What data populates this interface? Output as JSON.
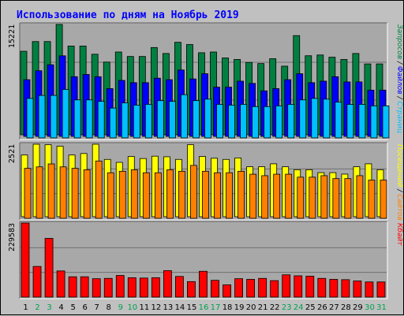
{
  "chart_data": {
    "type": "bar",
    "title": "Использование по дням на Ноябрь 2019",
    "colors": {
      "background": "#c0c0c0",
      "panel": "#a8a8a8",
      "title": "#0000ff",
      "requests": "#008040",
      "files": "#0000ff",
      "pages": "#00c0ff",
      "visits": "#ffff00",
      "sites": "#ff8000",
      "kbytes": "#ff0000",
      "weekend_day": "#00a050",
      "weekday": "#000000"
    },
    "days": [
      "1",
      "2",
      "3",
      "4",
      "5",
      "6",
      "7",
      "8",
      "9",
      "10",
      "11",
      "12",
      "13",
      "14",
      "15",
      "16",
      "17",
      "18",
      "19",
      "20",
      "21",
      "22",
      "23",
      "24",
      "25",
      "26",
      "27",
      "28",
      "29",
      "30",
      "31"
    ],
    "weekend_days": [
      "2",
      "3",
      "9",
      "10",
      "16",
      "17",
      "23",
      "24",
      "30",
      "31"
    ],
    "panels": [
      {
        "id": "hits",
        "ymax": 15221,
        "ymax_label": "15221",
        "legend": [
          {
            "text": "Запросов",
            "color": "#008040"
          },
          {
            "text": " / ",
            "color": "#000000"
          },
          {
            "text": "Файлов",
            "color": "#0000ff"
          },
          {
            "text": " / ",
            "color": "#000000"
          },
          {
            "text": "Страниц",
            "color": "#00c0ff"
          }
        ],
        "series": [
          {
            "name": "Запросов",
            "color": "#008040",
            "values": [
              11200,
              12500,
              12500,
              15221,
              11900,
              11900,
              10800,
              9750,
              11100,
              10500,
              10500,
              11700,
              10900,
              12400,
              12100,
              11000,
              11100,
              10300,
              10100,
              9700,
              9550,
              10200,
              9200,
              13300,
              10600,
              10700,
              10400,
              10100,
              10900,
              9500,
              9500
            ]
          },
          {
            "name": "Файлов",
            "color": "#0000ff",
            "values": [
              7600,
              8800,
              9600,
              10800,
              8000,
              8300,
              8000,
              6400,
              7500,
              7200,
              7200,
              7800,
              7600,
              8900,
              7700,
              8400,
              6600,
              6600,
              7400,
              7100,
              6100,
              6400,
              7600,
              8400,
              7200,
              7400,
              8000,
              7300,
              7300,
              6200,
              6200
            ]
          },
          {
            "name": "Страниц",
            "color": "#00c0ff",
            "values": [
              5300,
              5700,
              5700,
              6500,
              5100,
              5100,
              4900,
              4000,
              4700,
              4400,
              4500,
              5000,
              4900,
              5800,
              5000,
              5200,
              4500,
              4400,
              4500,
              4200,
              4200,
              4300,
              4500,
              5100,
              5300,
              5200,
              4800,
              4500,
              4500,
              4300,
              4300
            ]
          }
        ]
      },
      {
        "id": "visits",
        "ymax": 2521,
        "ymax_label": "2521",
        "legend": [
          {
            "text": "Посещений",
            "color": "#ffff00"
          },
          {
            "text": " / ",
            "color": "#000000"
          },
          {
            "text": "Сайтов",
            "color": "#ff8000"
          }
        ],
        "series": [
          {
            "name": "Посещений",
            "color": "#ffff00",
            "values": [
              2100,
              2521,
              2450,
              2400,
              2100,
              2150,
              2521,
              1950,
              1850,
              2050,
              1980,
              2060,
              2040,
              1950,
              2450,
              2050,
              1990,
              1950,
              2000,
              1700,
              1700,
              1800,
              1700,
              1600,
              1600,
              1500,
              1500,
              1450,
              1700,
              1800,
              1600
            ]
          },
          {
            "name": "Сайтов",
            "color": "#ff8000",
            "values": [
              1700,
              1750,
              1850,
              1750,
              1700,
              1650,
              1950,
              1550,
              1600,
              1650,
              1550,
              1550,
              1650,
              1600,
              1800,
              1600,
              1550,
              1550,
              1600,
              1500,
              1450,
              1500,
              1500,
              1400,
              1400,
              1450,
              1350,
              1350,
              1450,
              1300,
              1300
            ]
          }
        ]
      },
      {
        "id": "kbytes",
        "ymax": 229583,
        "ymax_label": "229583",
        "legend": [
          {
            "text": "Кбайт",
            "color": "#ff0000"
          }
        ],
        "series": [
          {
            "name": "Кбайт",
            "color": "#ff0000",
            "values": [
              229583,
              95000,
              182000,
              81000,
              63000,
              63000,
              57000,
              58000,
              67000,
              60000,
              59000,
              60000,
              82000,
              64000,
              48000,
              80000,
              52000,
              38000,
              57000,
              55000,
              58000,
              51000,
              69000,
              66000,
              65000,
              58000,
              55000,
              54000,
              50000,
              47000,
              47000
            ]
          }
        ]
      }
    ]
  }
}
